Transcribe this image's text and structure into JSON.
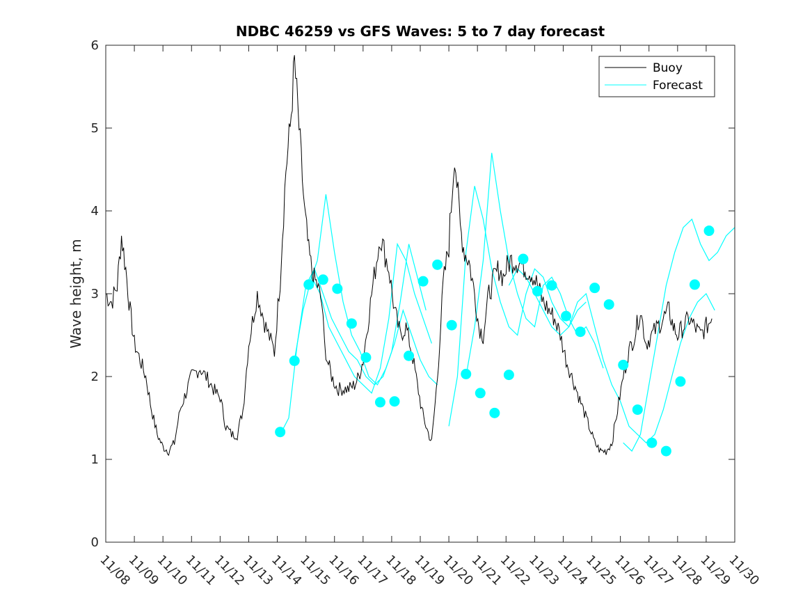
{
  "chart_data": {
    "type": "line",
    "title": "NDBC 46259 vs GFS Waves: 5 to 7 day forecast",
    "xlabel": "",
    "ylabel": "Wave height, m",
    "ylim": [
      0,
      6
    ],
    "xlim_days": [
      -1,
      21
    ],
    "x_tick_labels": [
      "11/08",
      "11/09",
      "11/10",
      "11/11",
      "11/12",
      "11/13",
      "11/14",
      "11/15",
      "11/16",
      "11/17",
      "11/18",
      "11/19",
      "11/20",
      "11/21",
      "11/22",
      "11/23",
      "11/24",
      "11/25",
      "11/26",
      "11/27",
      "11/28",
      "11/29",
      "11/30"
    ],
    "y_ticks": [
      0,
      1,
      2,
      3,
      4,
      5,
      6
    ],
    "legend_position": "top-right",
    "colors": {
      "buoy": "#000000",
      "forecast": "#00ffff"
    },
    "series": [
      {
        "name": "Buoy",
        "x_days": [
          -1.0,
          -0.8,
          -0.6,
          -0.45,
          -0.3,
          -0.15,
          0.0,
          0.2,
          0.4,
          0.6,
          0.8,
          1.0,
          1.2,
          1.4,
          1.6,
          1.8,
          2.0,
          2.3,
          2.6,
          2.85,
          3.0,
          3.2,
          3.4,
          3.6,
          3.8,
          4.0,
          4.3,
          4.6,
          4.9,
          5.1,
          5.3,
          5.45,
          5.6,
          5.8,
          5.95,
          6.1,
          6.25,
          6.4,
          6.55,
          6.65,
          6.75,
          6.9,
          7.1,
          7.3,
          7.5,
          7.7,
          7.85,
          8.0,
          8.3,
          8.6,
          8.9,
          9.1,
          9.3,
          9.5,
          9.7,
          9.9,
          10.05,
          10.2,
          10.4,
          10.6,
          10.8,
          11.0,
          11.2,
          11.4,
          11.55,
          11.7,
          11.9,
          12.05,
          12.2,
          12.4,
          12.6,
          12.75,
          12.9,
          13.0,
          13.15,
          13.35,
          13.55,
          13.7,
          13.9,
          14.1,
          14.3,
          14.5,
          14.7,
          14.9,
          15.1,
          15.3,
          15.5,
          15.7,
          15.9,
          16.1,
          16.3,
          16.5,
          16.7,
          16.9,
          17.1,
          17.3,
          17.5,
          17.7,
          17.9,
          18.1,
          18.3,
          18.5,
          18.7,
          18.85,
          19.0,
          19.2,
          19.4,
          19.6,
          19.8,
          20.0,
          20.2
        ],
        "values": [
          3.0,
          2.9,
          3.1,
          3.7,
          3.3,
          2.8,
          2.4,
          2.2,
          2.0,
          1.6,
          1.3,
          1.15,
          1.1,
          1.2,
          1.6,
          1.8,
          2.0,
          2.1,
          1.95,
          1.8,
          1.75,
          1.4,
          1.3,
          1.3,
          1.6,
          2.4,
          3.0,
          2.6,
          2.3,
          3.2,
          4.5,
          5.0,
          5.8,
          4.8,
          4.0,
          3.5,
          3.2,
          3.1,
          2.9,
          2.4,
          2.2,
          2.0,
          1.85,
          1.85,
          1.85,
          1.9,
          2.0,
          2.2,
          3.0,
          3.7,
          3.3,
          2.8,
          2.5,
          2.6,
          2.3,
          1.9,
          1.6,
          1.4,
          1.2,
          2.0,
          3.1,
          3.6,
          4.7,
          3.8,
          3.5,
          3.4,
          3.0,
          2.6,
          2.5,
          3.0,
          3.2,
          3.3,
          3.2,
          3.3,
          3.4,
          3.4,
          3.35,
          3.3,
          3.25,
          3.1,
          2.9,
          2.8,
          2.7,
          2.5,
          2.2,
          2.0,
          1.8,
          1.6,
          1.4,
          1.2,
          1.1,
          1.1,
          1.2,
          1.6,
          2.0,
          2.3,
          2.5,
          2.8,
          2.4,
          2.5,
          2.6,
          2.7,
          2.8,
          2.6,
          2.5,
          2.6,
          2.7,
          2.6,
          2.5,
          2.6,
          2.7
        ]
      },
      {
        "name": "Forecast",
        "curves_x_days": [
          [
            5.1,
            5.4,
            5.7,
            6.0,
            6.3,
            6.6,
            6.9,
            7.2,
            7.5,
            7.8,
            8.1,
            8.4,
            8.7,
            9.0,
            9.3,
            9.6,
            9.9,
            10.2
          ],
          [
            5.6,
            5.9,
            6.2,
            6.5,
            6.8,
            7.1,
            7.4,
            7.7,
            8.0,
            8.3,
            8.6,
            8.9,
            9.2,
            9.5,
            9.8,
            10.1,
            10.4
          ],
          [
            6.1,
            6.4,
            6.7,
            7.0,
            7.3,
            7.6,
            7.9,
            8.2,
            8.5,
            8.8,
            9.1,
            9.4,
            9.7,
            10.0,
            10.3,
            10.6
          ],
          [
            11.0,
            11.3,
            11.6,
            11.9,
            12.2,
            12.5,
            12.8,
            13.1,
            13.4,
            13.7,
            14.0,
            14.3,
            14.6,
            14.9,
            15.2,
            15.5,
            15.8
          ],
          [
            11.6,
            11.9,
            12.2,
            12.5,
            12.8,
            13.1,
            13.4,
            13.7,
            14.0,
            14.3,
            14.6,
            14.9,
            15.2,
            15.5,
            15.8,
            16.1,
            16.4
          ],
          [
            13.1,
            13.4,
            13.7,
            14.0,
            14.3,
            14.6,
            14.9,
            15.2,
            15.5,
            15.8,
            16.1,
            16.4,
            16.7,
            17.0,
            17.3,
            17.6,
            17.9,
            18.2,
            18.5,
            18.8,
            19.1,
            19.4,
            19.7,
            20.0,
            20.3
          ],
          [
            17.1,
            17.4,
            17.7,
            18.0,
            18.3,
            18.6,
            18.9,
            19.2,
            19.5,
            19.8,
            20.1,
            20.4,
            20.7,
            21.0
          ]
        ],
        "curves_values": [
          [
            1.3,
            1.5,
            2.4,
            3.1,
            3.3,
            3.0,
            2.7,
            2.5,
            2.3,
            2.2,
            2.0,
            1.9,
            2.0,
            2.3,
            2.9,
            3.6,
            3.2,
            2.8
          ],
          [
            2.2,
            2.8,
            3.2,
            3.0,
            2.6,
            2.4,
            2.2,
            2.0,
            1.9,
            1.8,
            2.1,
            2.7,
            3.6,
            3.4,
            3.0,
            2.7,
            2.4
          ],
          [
            3.1,
            3.4,
            4.2,
            3.5,
            2.9,
            2.5,
            2.3,
            2.0,
            1.9,
            2.1,
            2.4,
            2.8,
            2.5,
            2.2,
            2.0,
            1.9
          ],
          [
            1.4,
            2.0,
            3.5,
            4.3,
            3.9,
            3.3,
            2.9,
            2.6,
            2.5,
            3.0,
            3.3,
            3.2,
            2.9,
            2.7,
            2.6,
            2.8,
            2.9
          ],
          [
            2.0,
            2.6,
            3.4,
            4.7,
            4.0,
            3.4,
            3.0,
            2.7,
            2.6,
            3.1,
            3.2,
            3.0,
            2.7,
            2.5,
            2.6,
            2.4,
            2.1
          ],
          [
            3.1,
            3.3,
            3.2,
            3.0,
            2.8,
            2.6,
            2.5,
            2.6,
            2.9,
            3.0,
            2.6,
            2.2,
            1.9,
            1.7,
            1.4,
            1.3,
            1.2,
            1.3,
            1.6,
            2.0,
            2.4,
            2.7,
            2.9,
            3.0,
            2.8
          ],
          [
            1.2,
            1.1,
            1.3,
            1.9,
            2.5,
            3.1,
            3.5,
            3.8,
            3.9,
            3.6,
            3.4,
            3.5,
            3.7,
            3.8
          ]
        ],
        "markers_x_days": [
          5.1,
          5.6,
          6.1,
          6.6,
          7.1,
          7.6,
          8.1,
          8.6,
          9.1,
          9.6,
          10.1,
          10.6,
          11.1,
          11.6,
          12.1,
          12.6,
          13.1,
          13.6,
          14.1,
          14.6,
          15.1,
          15.6,
          16.1,
          16.6,
          17.1,
          17.6,
          18.1,
          18.6,
          19.1,
          19.6,
          20.1
        ],
        "markers_values": [
          1.33,
          2.19,
          3.11,
          3.17,
          3.06,
          2.64,
          2.23,
          1.69,
          1.7,
          2.25,
          3.15,
          3.35,
          2.62,
          2.03,
          1.8,
          1.56,
          2.02,
          3.42,
          3.03,
          3.1,
          2.73,
          2.54,
          3.07,
          2.87,
          2.14,
          1.6,
          1.2,
          1.1,
          1.94,
          3.11,
          3.76
        ]
      }
    ]
  }
}
